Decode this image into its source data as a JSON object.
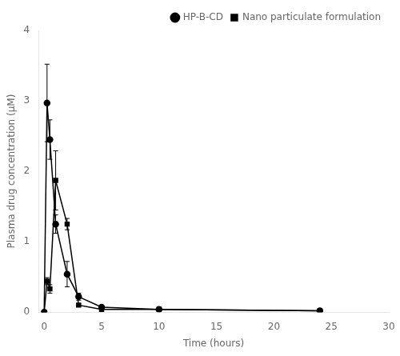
{
  "chart_data": {
    "type": "line",
    "xlabel": "Time (hours)",
    "ylabel": "Plasma drug concentration (μM)",
    "x": [
      0.0,
      0.25,
      0.5,
      1.0,
      2.0,
      3.0,
      5.0,
      10.0,
      24.0
    ],
    "series": [
      {
        "name": "HP-B-CD",
        "color": "#000000",
        "marker": "circle",
        "values": [
          0.0,
          2.97,
          2.45,
          1.25,
          0.54,
          0.22,
          0.07,
          0.04,
          0.02
        ],
        "yerr": [
          0.0,
          0.55,
          0.28,
          0.13,
          0.18,
          0.05,
          0.02,
          0.01,
          0.01
        ]
      },
      {
        "name": "Nano particulate formulation",
        "color": "#000000",
        "marker": "square",
        "values": [
          0.0,
          0.44,
          0.33,
          1.87,
          1.25,
          0.1,
          0.04,
          0.04,
          0.02
        ],
        "yerr": [
          0.0,
          0.05,
          0.06,
          0.42,
          0.08,
          0.02,
          0.01,
          0.01,
          0.01
        ]
      }
    ],
    "xlim": [
      -0.5,
      30
    ],
    "ylim": [
      0,
      4
    ],
    "xticks": [
      0,
      5,
      10,
      15,
      20,
      25,
      30
    ],
    "yticks": [
      0,
      1,
      2,
      3,
      4
    ],
    "grid": false,
    "legend": "upper right"
  }
}
